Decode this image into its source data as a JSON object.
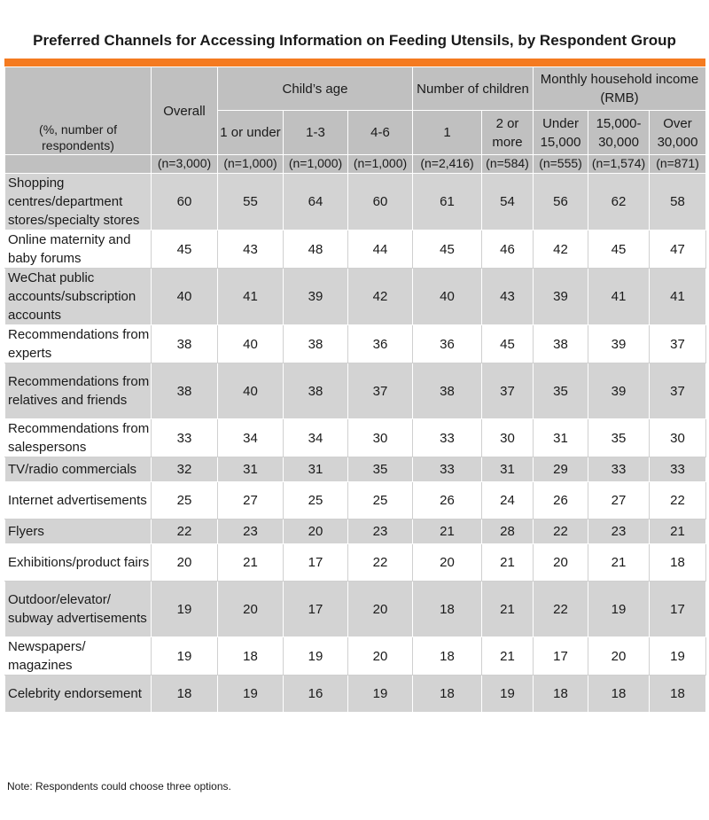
{
  "chart_data": {
    "type": "table",
    "title": "Preferred Channels for Accessing Information on Feeding Utensils, by Respondent Group",
    "unit_label": "(%, number of respondents)",
    "header": {
      "overall": "Overall",
      "groups": [
        "Child’s age",
        "Number of children",
        "Monthly household income (RMB)"
      ],
      "columns": [
        "1 or under",
        "1-3",
        "4-6",
        "1",
        "2 or more",
        "Under 15,000",
        "15,000-30,000",
        "Over 30,000"
      ],
      "sample_sizes": [
        "(n=3,000)",
        "(n=1,000)",
        "(n=1,000)",
        "(n=1,000)",
        "(n=2,416)",
        "(n=584)",
        "(n=555)",
        "(n=1,574)",
        "(n=871)"
      ]
    },
    "rows": [
      {
        "label": "Shopping centres/department stores/specialty stores",
        "values": [
          60,
          55,
          64,
          60,
          61,
          54,
          56,
          62,
          58
        ]
      },
      {
        "label": "Online maternity and baby forums",
        "values": [
          45,
          43,
          48,
          44,
          45,
          46,
          42,
          45,
          47
        ]
      },
      {
        "label": "WeChat public accounts/subscription accounts",
        "values": [
          40,
          41,
          39,
          42,
          40,
          43,
          39,
          41,
          41
        ]
      },
      {
        "label": "Recommendations from experts",
        "values": [
          38,
          40,
          38,
          36,
          36,
          45,
          38,
          39,
          37
        ]
      },
      {
        "label": "Recommendations from relatives and friends",
        "values": [
          38,
          40,
          38,
          37,
          38,
          37,
          35,
          39,
          37
        ]
      },
      {
        "label": "Recommendations from salespersons",
        "values": [
          33,
          34,
          34,
          30,
          33,
          30,
          31,
          35,
          30
        ]
      },
      {
        "label": "TV/radio commercials",
        "values": [
          32,
          31,
          31,
          35,
          33,
          31,
          29,
          33,
          33
        ]
      },
      {
        "label": "Internet advertisements",
        "values": [
          25,
          27,
          25,
          25,
          26,
          24,
          26,
          27,
          22
        ]
      },
      {
        "label": "Flyers",
        "values": [
          22,
          23,
          20,
          23,
          21,
          28,
          22,
          23,
          21
        ]
      },
      {
        "label": "Exhibitions/product fairs",
        "values": [
          20,
          21,
          17,
          22,
          20,
          21,
          20,
          21,
          18
        ]
      },
      {
        "label": "Outdoor/elevator/ subway advertisements",
        "values": [
          19,
          20,
          17,
          20,
          18,
          21,
          22,
          19,
          17
        ]
      },
      {
        "label": "Newspapers/ magazines",
        "values": [
          19,
          18,
          19,
          20,
          18,
          21,
          17,
          20,
          19
        ]
      },
      {
        "label": "Celebrity endorsement",
        "values": [
          18,
          19,
          16,
          19,
          18,
          19,
          18,
          18,
          18
        ]
      }
    ],
    "note": "Note: Respondents could choose three options.",
    "accent_color": "#f47a20",
    "header_color": "#c0c0c0",
    "stripe_color": "#d3d3d3"
  }
}
